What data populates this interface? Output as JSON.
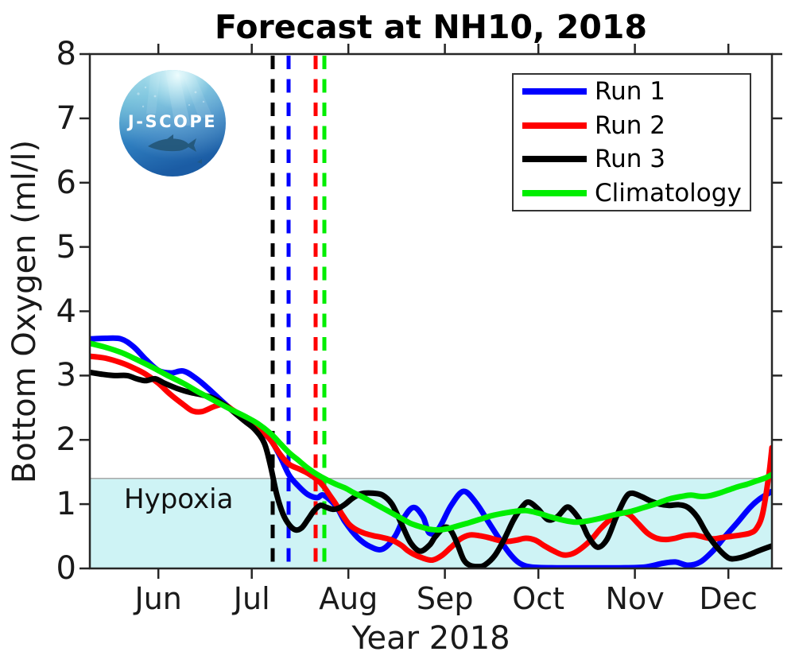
{
  "title": "Forecast at NH10, 2018",
  "logo_text": "J-SCOPE",
  "hypoxia_label": "Hypoxia",
  "chart_data": {
    "type": "line",
    "title": "Forecast at NH10, 2018",
    "xlabel": "Year 2018",
    "ylabel": "Bottom Oxygen (ml/l)",
    "grid": false,
    "legend_position": "top-right",
    "x_unit": "days from start of plotted record (mid-May 2018)",
    "xlim": [
      0,
      219
    ],
    "ylim": [
      0,
      8
    ],
    "y_ticks": [
      0,
      1,
      2,
      3,
      4,
      5,
      6,
      7,
      8
    ],
    "x_ticks": [
      {
        "day": 22,
        "label": "Jun"
      },
      {
        "day": 52,
        "label": "Jul"
      },
      {
        "day": 83,
        "label": "Aug"
      },
      {
        "day": 114,
        "label": "Sep"
      },
      {
        "day": 144,
        "label": "Oct"
      },
      {
        "day": 175,
        "label": "Nov"
      },
      {
        "day": 205,
        "label": "Dec"
      }
    ],
    "hypoxia_region": {
      "label": "Hypoxia",
      "ymin": 0,
      "ymax": 1.4,
      "fill": "#cef3f5",
      "edge": "#a9a9a9"
    },
    "hypoxia_onset_lines": [
      {
        "series": "Run 3",
        "day": 58.7,
        "color": "#000000",
        "style": "dashed"
      },
      {
        "series": "Run 1",
        "day": 63.8,
        "color": "#0000ff",
        "style": "dashed"
      },
      {
        "series": "Run 2",
        "day": 72.5,
        "color": "#ff0000",
        "style": "dashed"
      },
      {
        "series": "Climatology",
        "day": 75.3,
        "color": "#00ee00",
        "style": "dashed"
      }
    ],
    "series": [
      {
        "name": "Run 1",
        "color": "#0000ff",
        "points": [
          [
            0,
            3.57
          ],
          [
            5,
            3.58
          ],
          [
            10,
            3.57
          ],
          [
            14,
            3.45
          ],
          [
            18,
            3.25
          ],
          [
            22,
            3.08
          ],
          [
            26,
            3.04
          ],
          [
            30,
            3.07
          ],
          [
            34,
            2.96
          ],
          [
            38,
            2.8
          ],
          [
            42,
            2.62
          ],
          [
            46,
            2.45
          ],
          [
            50,
            2.3
          ],
          [
            54,
            2.17
          ],
          [
            58,
            2.0
          ],
          [
            61,
            1.75
          ],
          [
            64,
            1.45
          ],
          [
            67,
            1.28
          ],
          [
            70,
            1.15
          ],
          [
            73,
            1.1
          ],
          [
            75,
            1.14
          ],
          [
            79,
            0.97
          ],
          [
            82,
            0.72
          ],
          [
            86,
            0.48
          ],
          [
            90,
            0.34
          ],
          [
            94,
            0.3
          ],
          [
            98,
            0.5
          ],
          [
            101,
            0.8
          ],
          [
            104,
            0.95
          ],
          [
            107,
            0.8
          ],
          [
            109,
            0.55
          ],
          [
            112,
            0.62
          ],
          [
            116,
            0.98
          ],
          [
            120,
            1.2
          ],
          [
            124,
            1.02
          ],
          [
            128,
            0.72
          ],
          [
            132,
            0.42
          ],
          [
            135,
            0.22
          ],
          [
            138,
            0.08
          ],
          [
            142,
            0.02
          ],
          [
            150,
            0.01
          ],
          [
            160,
            0.01
          ],
          [
            170,
            0.01
          ],
          [
            178,
            0.02
          ],
          [
            184,
            0.08
          ],
          [
            188,
            0.1
          ],
          [
            192,
            0.05
          ],
          [
            196,
            0.1
          ],
          [
            200,
            0.27
          ],
          [
            204,
            0.5
          ],
          [
            208,
            0.72
          ],
          [
            212,
            0.95
          ],
          [
            215,
            1.08
          ],
          [
            219,
            1.2
          ]
        ]
      },
      {
        "name": "Run 2",
        "color": "#ff0000",
        "points": [
          [
            0,
            3.3
          ],
          [
            5,
            3.27
          ],
          [
            10,
            3.2
          ],
          [
            14,
            3.12
          ],
          [
            18,
            3.02
          ],
          [
            22,
            2.88
          ],
          [
            26,
            2.7
          ],
          [
            30,
            2.55
          ],
          [
            33,
            2.45
          ],
          [
            36,
            2.44
          ],
          [
            40,
            2.52
          ],
          [
            43,
            2.55
          ],
          [
            46,
            2.46
          ],
          [
            49,
            2.36
          ],
          [
            52,
            2.26
          ],
          [
            55,
            2.15
          ],
          [
            58,
            2.0
          ],
          [
            61,
            1.78
          ],
          [
            64,
            1.62
          ],
          [
            67,
            1.55
          ],
          [
            70,
            1.48
          ],
          [
            73,
            1.38
          ],
          [
            75,
            1.28
          ],
          [
            77,
            1.14
          ],
          [
            79,
            1.0
          ],
          [
            81,
            0.84
          ],
          [
            83,
            0.7
          ],
          [
            85,
            0.62
          ],
          [
            88,
            0.55
          ],
          [
            91,
            0.51
          ],
          [
            94,
            0.48
          ],
          [
            97,
            0.44
          ],
          [
            100,
            0.36
          ],
          [
            102,
            0.28
          ],
          [
            104,
            0.22
          ],
          [
            107,
            0.16
          ],
          [
            110,
            0.13
          ],
          [
            113,
            0.2
          ],
          [
            116,
            0.33
          ],
          [
            119,
            0.46
          ],
          [
            122,
            0.52
          ],
          [
            125,
            0.51
          ],
          [
            128,
            0.48
          ],
          [
            131,
            0.44
          ],
          [
            134,
            0.42
          ],
          [
            137,
            0.44
          ],
          [
            140,
            0.47
          ],
          [
            143,
            0.44
          ],
          [
            146,
            0.35
          ],
          [
            149,
            0.27
          ],
          [
            152,
            0.21
          ],
          [
            155,
            0.23
          ],
          [
            158,
            0.32
          ],
          [
            161,
            0.45
          ],
          [
            164,
            0.62
          ],
          [
            167,
            0.76
          ],
          [
            170,
            0.86
          ],
          [
            173,
            0.84
          ],
          [
            176,
            0.7
          ],
          [
            179,
            0.55
          ],
          [
            182,
            0.47
          ],
          [
            185,
            0.45
          ],
          [
            188,
            0.47
          ],
          [
            191,
            0.51
          ],
          [
            194,
            0.52
          ],
          [
            197,
            0.49
          ],
          [
            200,
            0.46
          ],
          [
            203,
            0.48
          ],
          [
            206,
            0.5
          ],
          [
            209,
            0.52
          ],
          [
            212,
            0.55
          ],
          [
            214,
            0.62
          ],
          [
            216,
            0.85
          ],
          [
            218,
            1.45
          ],
          [
            219,
            1.88
          ]
        ]
      },
      {
        "name": "Run 3",
        "color": "#000000",
        "points": [
          [
            0,
            3.05
          ],
          [
            4,
            3.02
          ],
          [
            8,
            3.0
          ],
          [
            12,
            3.0
          ],
          [
            15,
            2.95
          ],
          [
            18,
            2.92
          ],
          [
            21,
            2.95
          ],
          [
            24,
            2.88
          ],
          [
            28,
            2.8
          ],
          [
            32,
            2.74
          ],
          [
            36,
            2.7
          ],
          [
            40,
            2.64
          ],
          [
            44,
            2.52
          ],
          [
            47,
            2.4
          ],
          [
            50,
            2.28
          ],
          [
            53,
            2.16
          ],
          [
            56,
            1.95
          ],
          [
            58,
            1.6
          ],
          [
            60,
            1.15
          ],
          [
            62,
            0.85
          ],
          [
            64,
            0.68
          ],
          [
            66,
            0.6
          ],
          [
            68,
            0.63
          ],
          [
            70,
            0.76
          ],
          [
            72,
            0.9
          ],
          [
            74,
            0.98
          ],
          [
            76,
            0.95
          ],
          [
            78,
            0.92
          ],
          [
            80,
            0.94
          ],
          [
            82,
            1.0
          ],
          [
            84,
            1.08
          ],
          [
            86,
            1.14
          ],
          [
            88,
            1.17
          ],
          [
            91,
            1.17
          ],
          [
            94,
            1.14
          ],
          [
            97,
            1.0
          ],
          [
            100,
            0.7
          ],
          [
            103,
            0.4
          ],
          [
            106,
            0.27
          ],
          [
            109,
            0.36
          ],
          [
            111,
            0.5
          ],
          [
            114,
            0.64
          ],
          [
            116,
            0.58
          ],
          [
            118,
            0.38
          ],
          [
            120,
            0.14
          ],
          [
            122,
            0.05
          ],
          [
            125,
            0.03
          ],
          [
            127,
            0.06
          ],
          [
            130,
            0.2
          ],
          [
            133,
            0.45
          ],
          [
            136,
            0.75
          ],
          [
            139,
            0.97
          ],
          [
            141,
            1.03
          ],
          [
            144,
            0.92
          ],
          [
            147,
            0.76
          ],
          [
            150,
            0.8
          ],
          [
            153,
            0.95
          ],
          [
            155,
            0.9
          ],
          [
            158,
            0.7
          ],
          [
            160,
            0.5
          ],
          [
            163,
            0.33
          ],
          [
            166,
            0.45
          ],
          [
            169,
            0.8
          ],
          [
            172,
            1.1
          ],
          [
            174,
            1.17
          ],
          [
            177,
            1.12
          ],
          [
            180,
            1.05
          ],
          [
            183,
            1.0
          ],
          [
            186,
            0.98
          ],
          [
            189,
            0.99
          ],
          [
            192,
            0.95
          ],
          [
            195,
            0.8
          ],
          [
            198,
            0.55
          ],
          [
            201,
            0.35
          ],
          [
            204,
            0.2
          ],
          [
            206,
            0.15
          ],
          [
            209,
            0.17
          ],
          [
            212,
            0.22
          ],
          [
            215,
            0.28
          ],
          [
            219,
            0.35
          ]
        ]
      },
      {
        "name": "Climatology",
        "color": "#00ee00",
        "points": [
          [
            0,
            3.5
          ],
          [
            5,
            3.44
          ],
          [
            10,
            3.36
          ],
          [
            15,
            3.25
          ],
          [
            20,
            3.13
          ],
          [
            25,
            3.0
          ],
          [
            30,
            2.88
          ],
          [
            35,
            2.74
          ],
          [
            40,
            2.61
          ],
          [
            45,
            2.48
          ],
          [
            50,
            2.36
          ],
          [
            54,
            2.25
          ],
          [
            58,
            2.1
          ],
          [
            61,
            1.95
          ],
          [
            64,
            1.8
          ],
          [
            67,
            1.68
          ],
          [
            70,
            1.56
          ],
          [
            73,
            1.46
          ],
          [
            76,
            1.38
          ],
          [
            79,
            1.31
          ],
          [
            82,
            1.25
          ],
          [
            85,
            1.17
          ],
          [
            88,
            1.1
          ],
          [
            91,
            1.02
          ],
          [
            94,
            0.94
          ],
          [
            97,
            0.86
          ],
          [
            100,
            0.78
          ],
          [
            103,
            0.7
          ],
          [
            106,
            0.65
          ],
          [
            109,
            0.61
          ],
          [
            112,
            0.6
          ],
          [
            115,
            0.62
          ],
          [
            118,
            0.66
          ],
          [
            121,
            0.7
          ],
          [
            125,
            0.76
          ],
          [
            129,
            0.82
          ],
          [
            133,
            0.86
          ],
          [
            137,
            0.89
          ],
          [
            140,
            0.9
          ],
          [
            144,
            0.86
          ],
          [
            148,
            0.8
          ],
          [
            152,
            0.75
          ],
          [
            156,
            0.72
          ],
          [
            160,
            0.74
          ],
          [
            164,
            0.78
          ],
          [
            168,
            0.83
          ],
          [
            171,
            0.86
          ],
          [
            174,
            0.89
          ],
          [
            178,
            0.95
          ],
          [
            182,
            1.01
          ],
          [
            186,
            1.08
          ],
          [
            190,
            1.12
          ],
          [
            193,
            1.14
          ],
          [
            196,
            1.12
          ],
          [
            199,
            1.13
          ],
          [
            202,
            1.17
          ],
          [
            205,
            1.22
          ],
          [
            208,
            1.27
          ],
          [
            211,
            1.31
          ],
          [
            214,
            1.36
          ],
          [
            217,
            1.41
          ],
          [
            219,
            1.46
          ]
        ]
      }
    ]
  },
  "legend": {
    "items": [
      {
        "label": "Run 1",
        "color": "#0000ff"
      },
      {
        "label": "Run 2",
        "color": "#ff0000"
      },
      {
        "label": "Run 3",
        "color": "#000000"
      },
      {
        "label": "Climatology",
        "color": "#00ee00"
      }
    ]
  }
}
